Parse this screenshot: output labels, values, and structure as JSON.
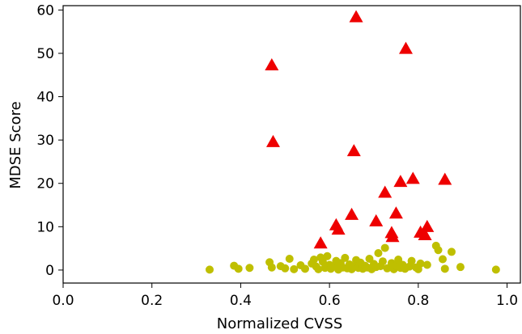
{
  "chart_data": {
    "type": "scatter",
    "title": "",
    "xlabel": "Normalized CVSS",
    "ylabel": "MDSE Score",
    "xlim": [
      0.0,
      1.03
    ],
    "ylim": [
      -3,
      61
    ],
    "x_ticks": [
      0.0,
      0.2,
      0.4,
      0.6,
      0.8,
      1.0
    ],
    "x_tick_labels": [
      "0.0",
      "0.2",
      "0.4",
      "0.6",
      "0.8",
      "1.0"
    ],
    "y_ticks": [
      0,
      10,
      20,
      30,
      40,
      50,
      60
    ],
    "y_tick_labels": [
      "0",
      "10",
      "20",
      "30",
      "40",
      "50",
      "60"
    ],
    "grid": false,
    "series": [
      {
        "marker": "circle",
        "color": "#bfbf00",
        "points": [
          [
            0.33,
            0.1
          ],
          [
            0.385,
            1.0
          ],
          [
            0.395,
            0.3
          ],
          [
            0.42,
            0.5
          ],
          [
            0.465,
            1.8
          ],
          [
            0.47,
            0.6
          ],
          [
            0.49,
            0.9
          ],
          [
            0.5,
            0.4
          ],
          [
            0.51,
            2.6
          ],
          [
            0.52,
            0.2
          ],
          [
            0.535,
            1.1
          ],
          [
            0.545,
            0.3
          ],
          [
            0.56,
            1.5
          ],
          [
            0.565,
            2.4
          ],
          [
            0.57,
            0.8
          ],
          [
            0.575,
            0.2
          ],
          [
            0.58,
            2.9
          ],
          [
            0.585,
            1.9
          ],
          [
            0.59,
            0.5
          ],
          [
            0.595,
            3.2
          ],
          [
            0.6,
            1.2
          ],
          [
            0.603,
            0.3
          ],
          [
            0.61,
            0.9
          ],
          [
            0.615,
            2.1
          ],
          [
            0.62,
            0.1
          ],
          [
            0.625,
            1.6
          ],
          [
            0.63,
            0.6
          ],
          [
            0.635,
            2.8
          ],
          [
            0.64,
            0.4
          ],
          [
            0.645,
            1.3
          ],
          [
            0.65,
            0.2
          ],
          [
            0.655,
            0.8
          ],
          [
            0.66,
            2.3
          ],
          [
            0.665,
            0.5
          ],
          [
            0.67,
            1.7
          ],
          [
            0.675,
            0.3
          ],
          [
            0.68,
            1.0
          ],
          [
            0.685,
            0.6
          ],
          [
            0.69,
            2.6
          ],
          [
            0.695,
            0.2
          ],
          [
            0.7,
            1.4
          ],
          [
            0.705,
            0.7
          ],
          [
            0.71,
            3.9
          ],
          [
            0.715,
            0.9
          ],
          [
            0.72,
            2.0
          ],
          [
            0.725,
            5.1
          ],
          [
            0.73,
            0.4
          ],
          [
            0.74,
            1.6
          ],
          [
            0.745,
            0.2
          ],
          [
            0.75,
            1.0
          ],
          [
            0.755,
            2.4
          ],
          [
            0.76,
            0.5
          ],
          [
            0.765,
            1.2
          ],
          [
            0.77,
            0.3
          ],
          [
            0.78,
            0.8
          ],
          [
            0.785,
            2.1
          ],
          [
            0.795,
            0.6
          ],
          [
            0.8,
            0.2
          ],
          [
            0.805,
            1.5
          ],
          [
            0.82,
            1.2
          ],
          [
            0.84,
            5.6
          ],
          [
            0.845,
            4.6
          ],
          [
            0.855,
            2.5
          ],
          [
            0.86,
            0.3
          ],
          [
            0.875,
            4.2
          ],
          [
            0.895,
            0.7
          ],
          [
            0.975,
            0.1
          ]
        ]
      },
      {
        "marker": "triangle",
        "color": "#ee0000",
        "points": [
          [
            0.47,
            47.2
          ],
          [
            0.473,
            29.5
          ],
          [
            0.58,
            6.1
          ],
          [
            0.615,
            10.3
          ],
          [
            0.62,
            9.3
          ],
          [
            0.65,
            12.7
          ],
          [
            0.655,
            27.4
          ],
          [
            0.66,
            58.3
          ],
          [
            0.705,
            11.2
          ],
          [
            0.725,
            17.8
          ],
          [
            0.74,
            8.5
          ],
          [
            0.742,
            7.6
          ],
          [
            0.75,
            13.0
          ],
          [
            0.76,
            20.3
          ],
          [
            0.772,
            51.0
          ],
          [
            0.788,
            21.0
          ],
          [
            0.805,
            8.6
          ],
          [
            0.815,
            8.0
          ],
          [
            0.82,
            9.9
          ],
          [
            0.86,
            20.8
          ]
        ]
      }
    ]
  }
}
